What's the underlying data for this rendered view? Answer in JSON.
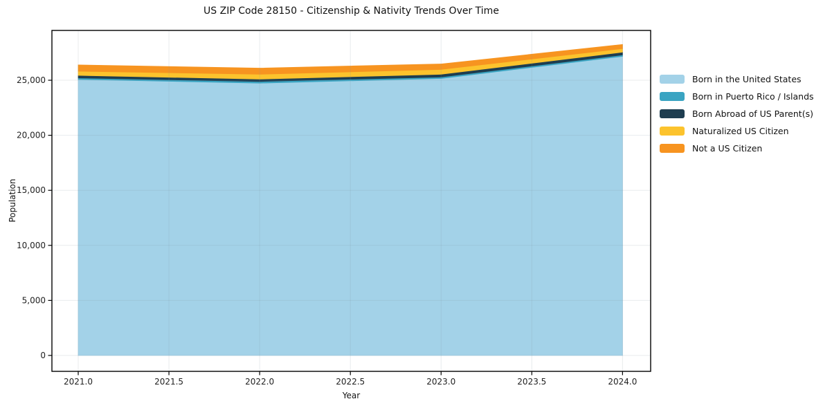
{
  "chart_data": {
    "type": "area",
    "stacked": true,
    "title": "US ZIP Code 28150 - Citizenship & Nativity Trends Over Time",
    "xlabel": "Year",
    "ylabel": "Population",
    "x": [
      2021,
      2022,
      2023,
      2024
    ],
    "series": [
      {
        "name": "Born in the United States",
        "color": "#A3D2E8",
        "values": [
          25080,
          24740,
          25160,
          27170
        ]
      },
      {
        "name": "Born in Puerto Rico / Islands",
        "color": "#3AA4C2",
        "values": [
          130,
          150,
          130,
          130
        ]
      },
      {
        "name": "Born Abroad of US Parent(s)",
        "color": "#1E3D50",
        "values": [
          230,
          210,
          250,
          250
        ]
      },
      {
        "name": "Naturalized US Citizen",
        "color": "#FCC32D",
        "values": [
          380,
          440,
          440,
          320
        ]
      },
      {
        "name": "Not a US Citizen",
        "color": "#F79420",
        "values": [
          570,
          560,
          500,
          380
        ]
      }
    ],
    "stack_totals": [
      26390,
      26100,
      26480,
      28250
    ],
    "xticks": {
      "values": [
        2021,
        2021.5,
        2022,
        2022.5,
        2023,
        2023.5,
        2024
      ],
      "labels": [
        "2021.0",
        "2021.5",
        "2022.0",
        "2022.5",
        "2023.0",
        "2023.5",
        "2024.0"
      ]
    },
    "yticks": {
      "values": [
        0,
        5000,
        10000,
        15000,
        20000,
        25000
      ],
      "labels": [
        "0",
        "5,000",
        "10,000",
        "15,000",
        "20,000",
        "25,000"
      ]
    },
    "xlim": [
      2020.855,
      2024.155
    ],
    "ylim": [
      -1445,
      29525
    ],
    "grid": true,
    "legend_position": "right-outside",
    "colors": {
      "frame": "#000000",
      "grid": "#7d909b",
      "background": "#ffffff"
    }
  }
}
